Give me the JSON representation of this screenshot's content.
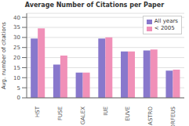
{
  "chart_data": {
    "type": "bar",
    "title": "Average Number of Citations per Paper",
    "ylabel": "Avg. number of citations",
    "categories": [
      "HST",
      "FUSE",
      "GALEX",
      "IUE",
      "EUVE",
      "ASTRO",
      "ORFEUS"
    ],
    "series": [
      {
        "name": "All years",
        "color": "#8878cc",
        "values": [
          29.5,
          16.5,
          12.5,
          29.5,
          23,
          23.5,
          13.5
        ]
      },
      {
        "name": "< 2005",
        "color": "#f090b8",
        "values": [
          34.5,
          21,
          12.5,
          30,
          23,
          24,
          14
        ]
      }
    ],
    "ylim": [
      0,
      42
    ],
    "yticks": [
      0,
      5,
      10,
      15,
      20,
      25,
      30,
      35,
      40
    ],
    "grid": true,
    "legend": "upper right"
  }
}
